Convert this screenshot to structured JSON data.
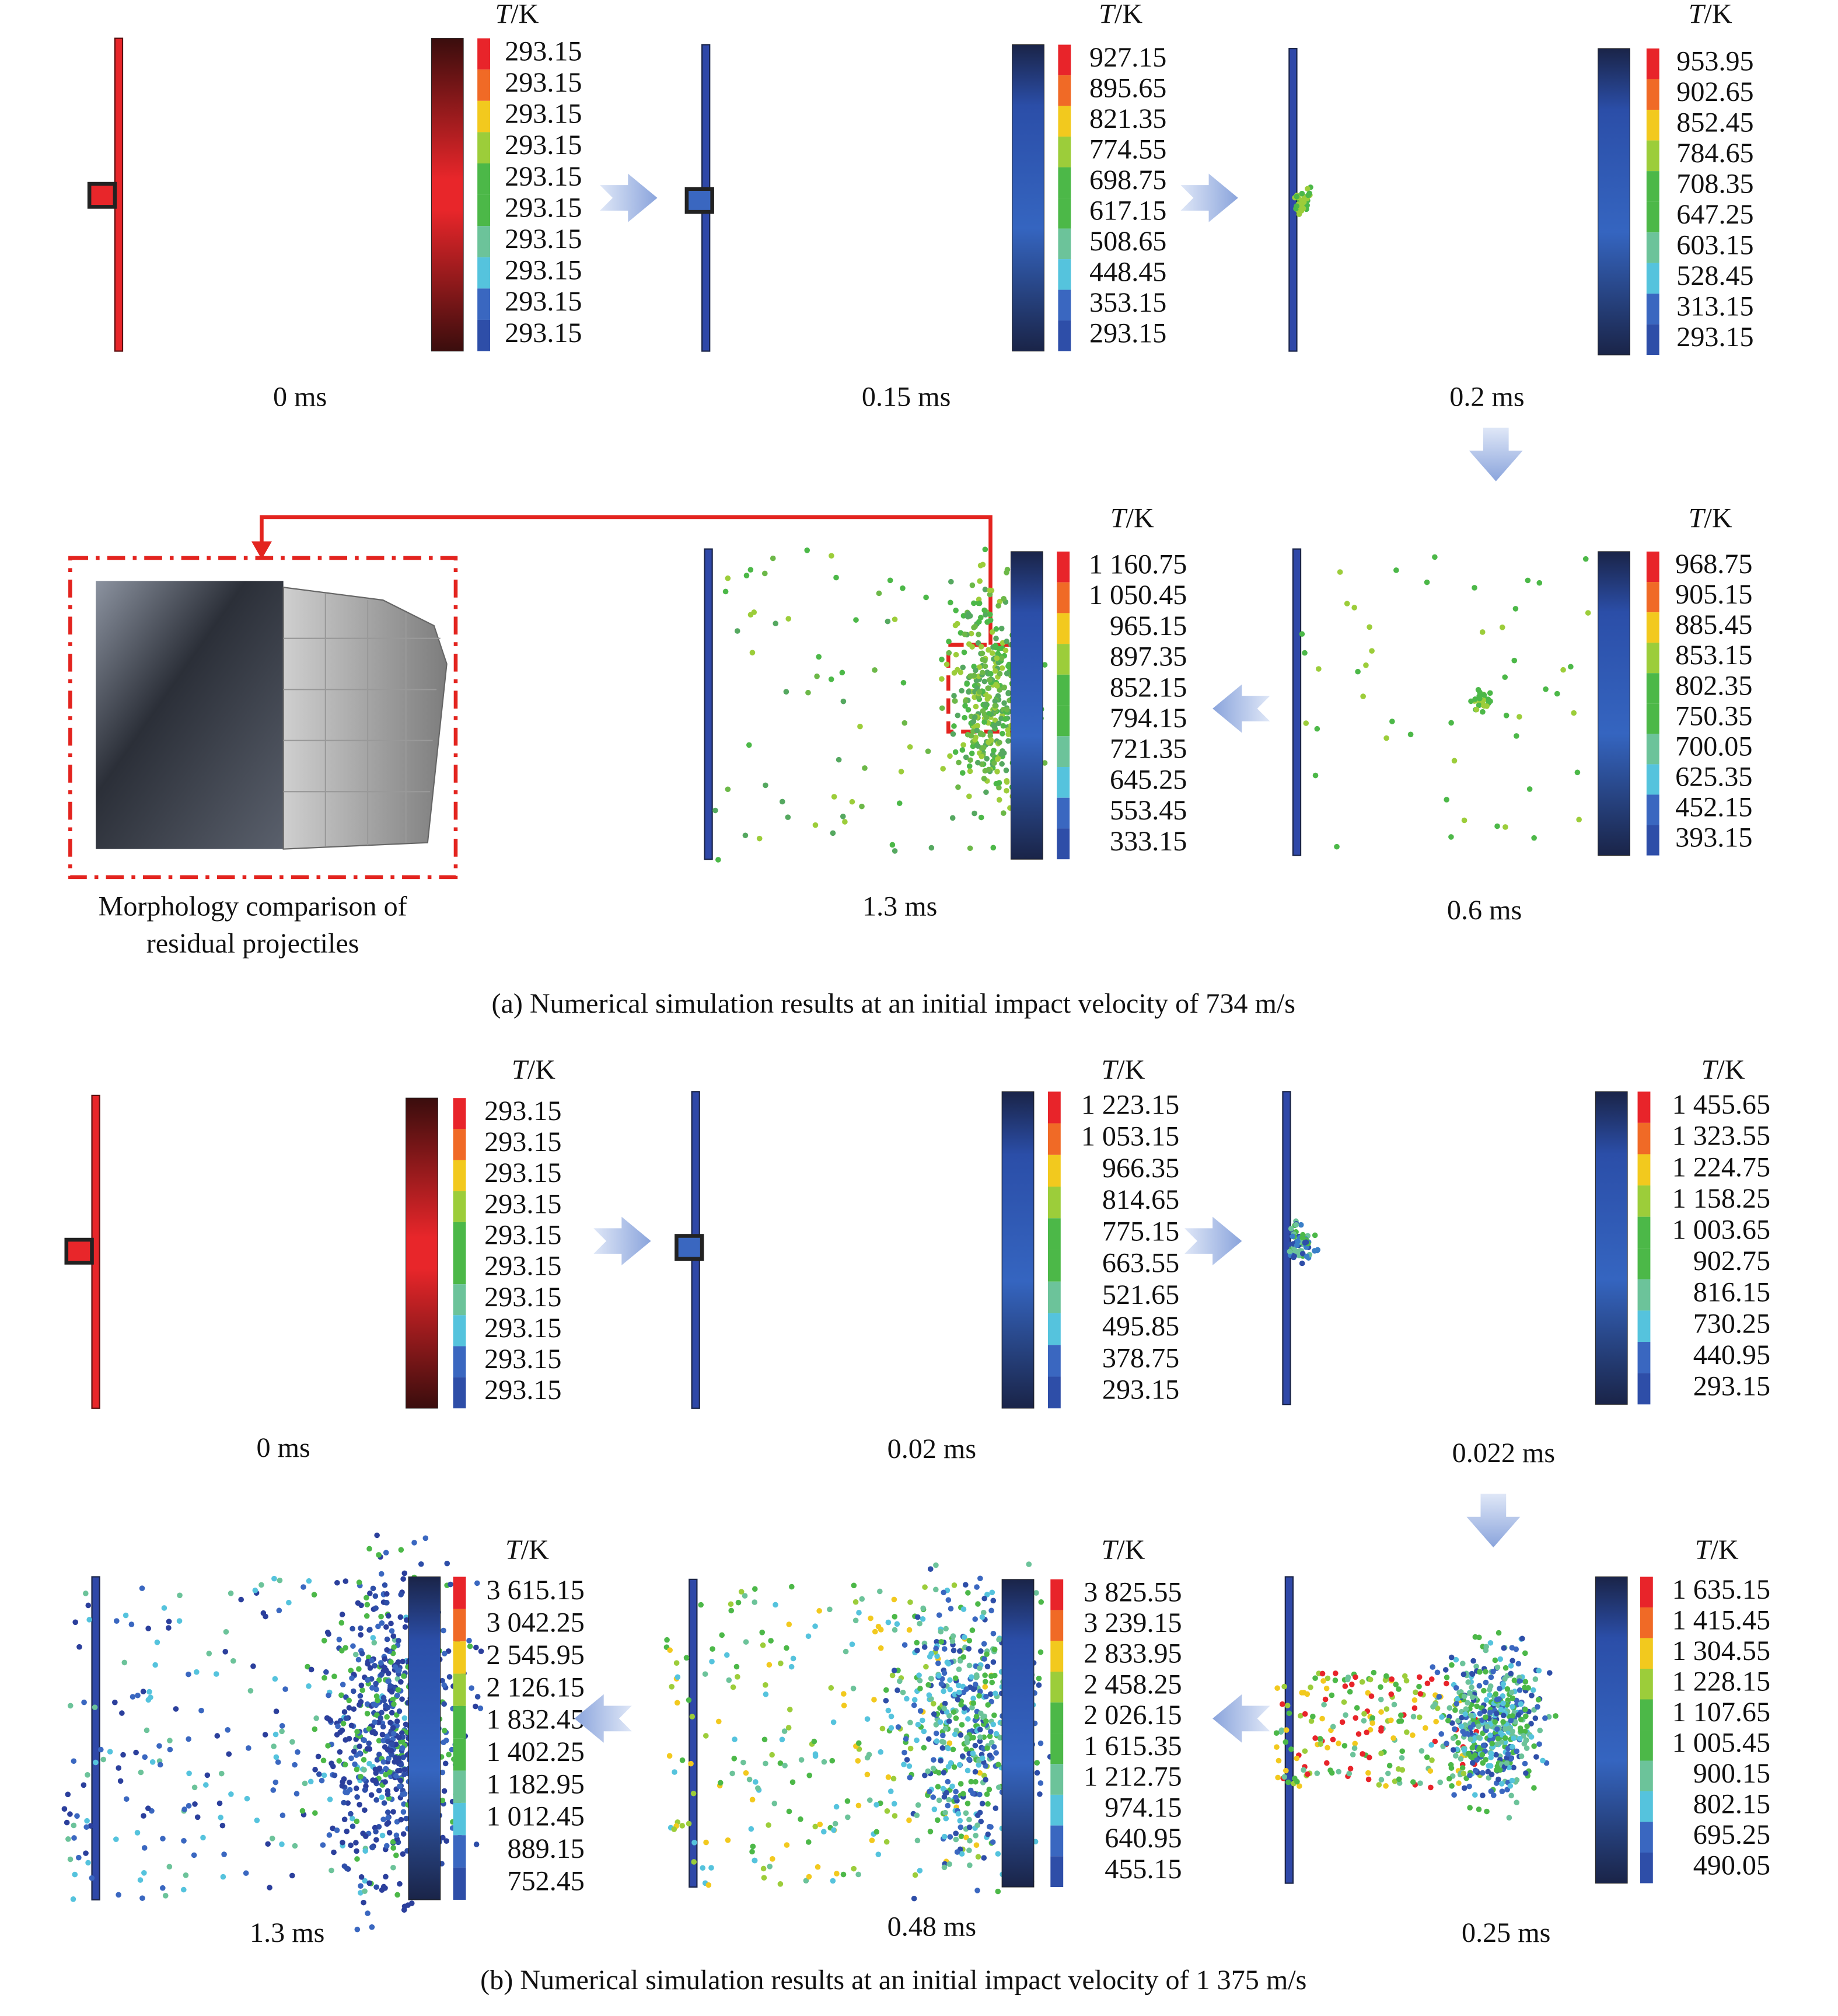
{
  "colorbar_title": {
    "symbol": "T",
    "unit": "/K"
  },
  "figure_a": {
    "caption": "(a) Numerical simulation results at an initial impact velocity of 734 m/s",
    "inset_caption": [
      "Morphology comparison of",
      "residual projectiles"
    ],
    "panels": [
      {
        "time": "0 ms",
        "legend": [
          "293.15",
          "293.15",
          "293.15",
          "293.15",
          "293.15",
          "293.15",
          "293.15",
          "293.15",
          "293.15",
          "293.15"
        ]
      },
      {
        "time": "0.15 ms",
        "legend": [
          "927.15",
          "895.65",
          "821.35",
          "774.55",
          "698.75",
          "617.15",
          "508.65",
          "448.45",
          "353.15",
          "293.15"
        ]
      },
      {
        "time": "0.2 ms",
        "legend": [
          "953.95",
          "902.65",
          "852.45",
          "784.65",
          "708.35",
          "647.25",
          "603.15",
          "528.45",
          "313.15",
          "293.15"
        ]
      },
      {
        "time": "1.3 ms",
        "legend": [
          "1 160.75",
          "1 050.45",
          "965.15",
          "897.35",
          "852.15",
          "794.15",
          "721.35",
          "645.25",
          "553.45",
          "333.15"
        ]
      },
      {
        "time": "0.6 ms",
        "legend": [
          "968.75",
          "905.15",
          "885.45",
          "853.15",
          "802.35",
          "750.35",
          "700.05",
          "625.35",
          "452.15",
          "393.15"
        ]
      }
    ]
  },
  "figure_b": {
    "caption": "(b) Numerical simulation results at an initial impact velocity of 1 375 m/s",
    "panels": [
      {
        "time": "0 ms",
        "legend": [
          "293.15",
          "293.15",
          "293.15",
          "293.15",
          "293.15",
          "293.15",
          "293.15",
          "293.15",
          "293.15",
          "293.15"
        ]
      },
      {
        "time": "0.02 ms",
        "legend": [
          "1 223.15",
          "1 053.15",
          "966.35",
          "814.65",
          "775.15",
          "663.55",
          "521.65",
          "495.85",
          "378.75",
          "293.15"
        ]
      },
      {
        "time": "0.022 ms",
        "legend": [
          "1 455.65",
          "1 323.55",
          "1 224.75",
          "1 158.25",
          "1 003.65",
          "902.75",
          "816.15",
          "730.25",
          "440.95",
          "293.15"
        ]
      },
      {
        "time": "1.3 ms",
        "legend": [
          "3 615.15",
          "3 042.25",
          "2 545.95",
          "2 126.15",
          "1 832.45",
          "1 402.25",
          "1 182.95",
          "1 012.45",
          "889.15",
          "752.45"
        ]
      },
      {
        "time": "0.48 ms",
        "legend": [
          "3 825.55",
          "3 239.15",
          "2 833.95",
          "2 458.25",
          "2 026.15",
          "1 615.35",
          "1 212.75",
          "974.15",
          "640.95",
          "455.15"
        ]
      },
      {
        "time": "0.25 ms",
        "legend": [
          "1 635.15",
          "1 415.45",
          "1 304.55",
          "1 228.15",
          "1 107.65",
          "1 005.45",
          "900.15",
          "802.15",
          "695.25",
          "490.05"
        ]
      }
    ]
  }
}
